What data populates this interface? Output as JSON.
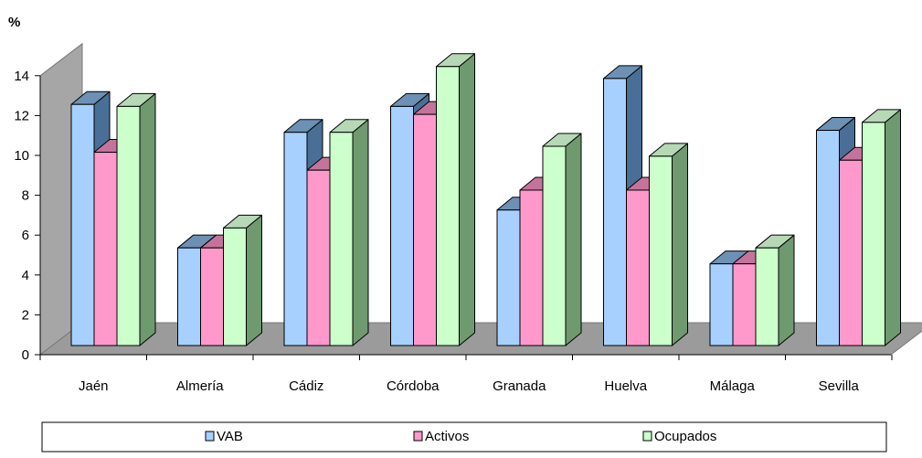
{
  "chart_data": {
    "type": "bar",
    "ylabel": "%",
    "ylim": [
      0,
      14
    ],
    "yticks": [
      "0",
      "2",
      "4",
      "6",
      "8",
      "10",
      "12",
      "14"
    ],
    "categories": [
      "Jaén",
      "Almería",
      "Cádiz",
      "Córdoba",
      "Granada",
      "Huelva",
      "Málaga",
      "Sevilla"
    ],
    "series": [
      {
        "name": "VAB",
        "values": [
          12.1,
          4.9,
          10.7,
          12.0,
          6.8,
          13.4,
          4.1,
          10.8
        ]
      },
      {
        "name": "Activos",
        "values": [
          9.7,
          4.9,
          8.8,
          11.6,
          7.8,
          7.8,
          4.1,
          9.3
        ]
      },
      {
        "name": "Ocupados",
        "values": [
          12.0,
          5.9,
          10.7,
          14.0,
          10.0,
          9.5,
          4.9,
          11.2
        ]
      }
    ],
    "grid": false,
    "three_d": true,
    "legend_position": "bottom"
  },
  "colors": {
    "series": [
      {
        "front": "#a8d0ff",
        "side": "#4a6f96",
        "top": "#6d90b5"
      },
      {
        "front": "#ff99cc",
        "side": "#a24f7c",
        "top": "#c4749c"
      },
      {
        "front": "#ccffcc",
        "side": "#6f996f",
        "top": "#b6d8b6"
      }
    ],
    "wall": "#a6a6a6",
    "floor": "#9b9b9b",
    "axis": "#000000"
  }
}
